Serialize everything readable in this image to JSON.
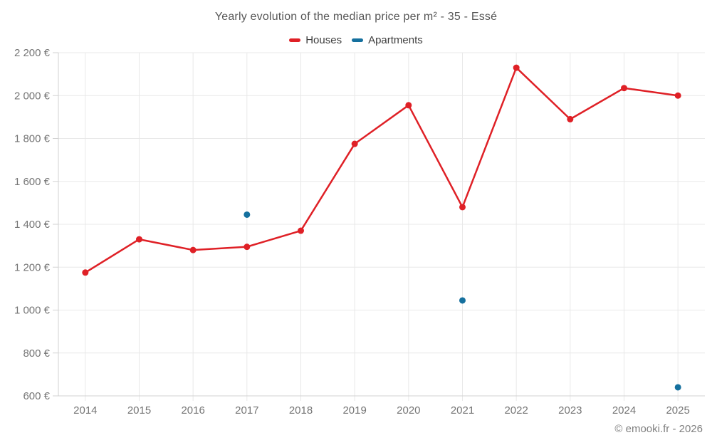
{
  "page": {
    "title": "Yearly evolution of the median price per m² - 35 - Essé"
  },
  "legend": {
    "items": [
      {
        "label": "Houses",
        "color": "#df2026"
      },
      {
        "label": "Apartments",
        "color": "#15709e"
      }
    ]
  },
  "footer": {
    "copyright": "© emooki.fr - 2026"
  },
  "chart_data": {
    "type": "line",
    "title": "Yearly evolution of the median price per m² - 35 - Essé",
    "categories": [
      "2014",
      "2015",
      "2016",
      "2017",
      "2018",
      "2019",
      "2020",
      "2021",
      "2022",
      "2023",
      "2024",
      "2025"
    ],
    "series": [
      {
        "name": "Houses",
        "color": "#df2026",
        "draw_line": true,
        "values": [
          1175,
          1330,
          1280,
          1295,
          1370,
          1775,
          1955,
          1480,
          2130,
          1890,
          2035,
          2000
        ]
      },
      {
        "name": "Apartments",
        "color": "#15709e",
        "draw_line": false,
        "values": [
          null,
          null,
          null,
          1445,
          null,
          null,
          null,
          1045,
          null,
          null,
          null,
          640
        ]
      }
    ],
    "xlabel": "",
    "ylabel": "",
    "ylim": [
      600,
      2200
    ],
    "ytick_step": 200,
    "y_tick_format": "{value} €",
    "thousands_separator": " ",
    "grid": true,
    "legend_position": "top",
    "marker_radius": 4.5,
    "line_width": 2.5
  }
}
